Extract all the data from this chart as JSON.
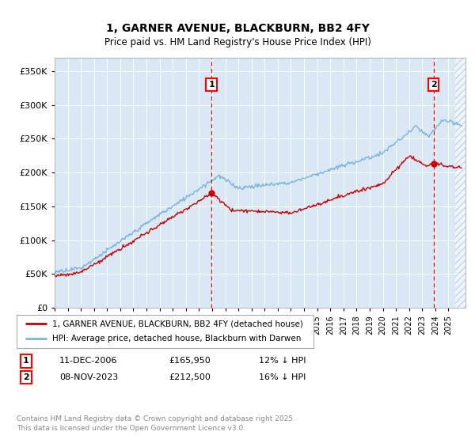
{
  "title": "1, GARNER AVENUE, BLACKBURN, BB2 4FY",
  "subtitle": "Price paid vs. HM Land Registry's House Price Index (HPI)",
  "ylim": [
    0,
    370000
  ],
  "xlim_start": 1995,
  "xlim_end": 2026.3,
  "sale1_date": 2006.95,
  "sale1_price": 165950,
  "sale1_display": "11-DEC-2006",
  "sale1_price_display": "£165,950",
  "sale1_hpi": "12% ↓ HPI",
  "sale2_date": 2023.87,
  "sale2_price": 212500,
  "sale2_display": "08-NOV-2023",
  "sale2_price_display": "£212,500",
  "sale2_hpi": "16% ↓ HPI",
  "legend_line1": "1, GARNER AVENUE, BLACKBURN, BB2 4FY (detached house)",
  "legend_line2": "HPI: Average price, detached house, Blackburn with Darwen",
  "footer": "Contains HM Land Registry data © Crown copyright and database right 2025.\nThis data is licensed under the Open Government Licence v3.0.",
  "hpi_color": "#7ab4d8",
  "price_color": "#cc0000",
  "bg_color": "#dae8f5",
  "hatch_color": "#c0d8ec"
}
